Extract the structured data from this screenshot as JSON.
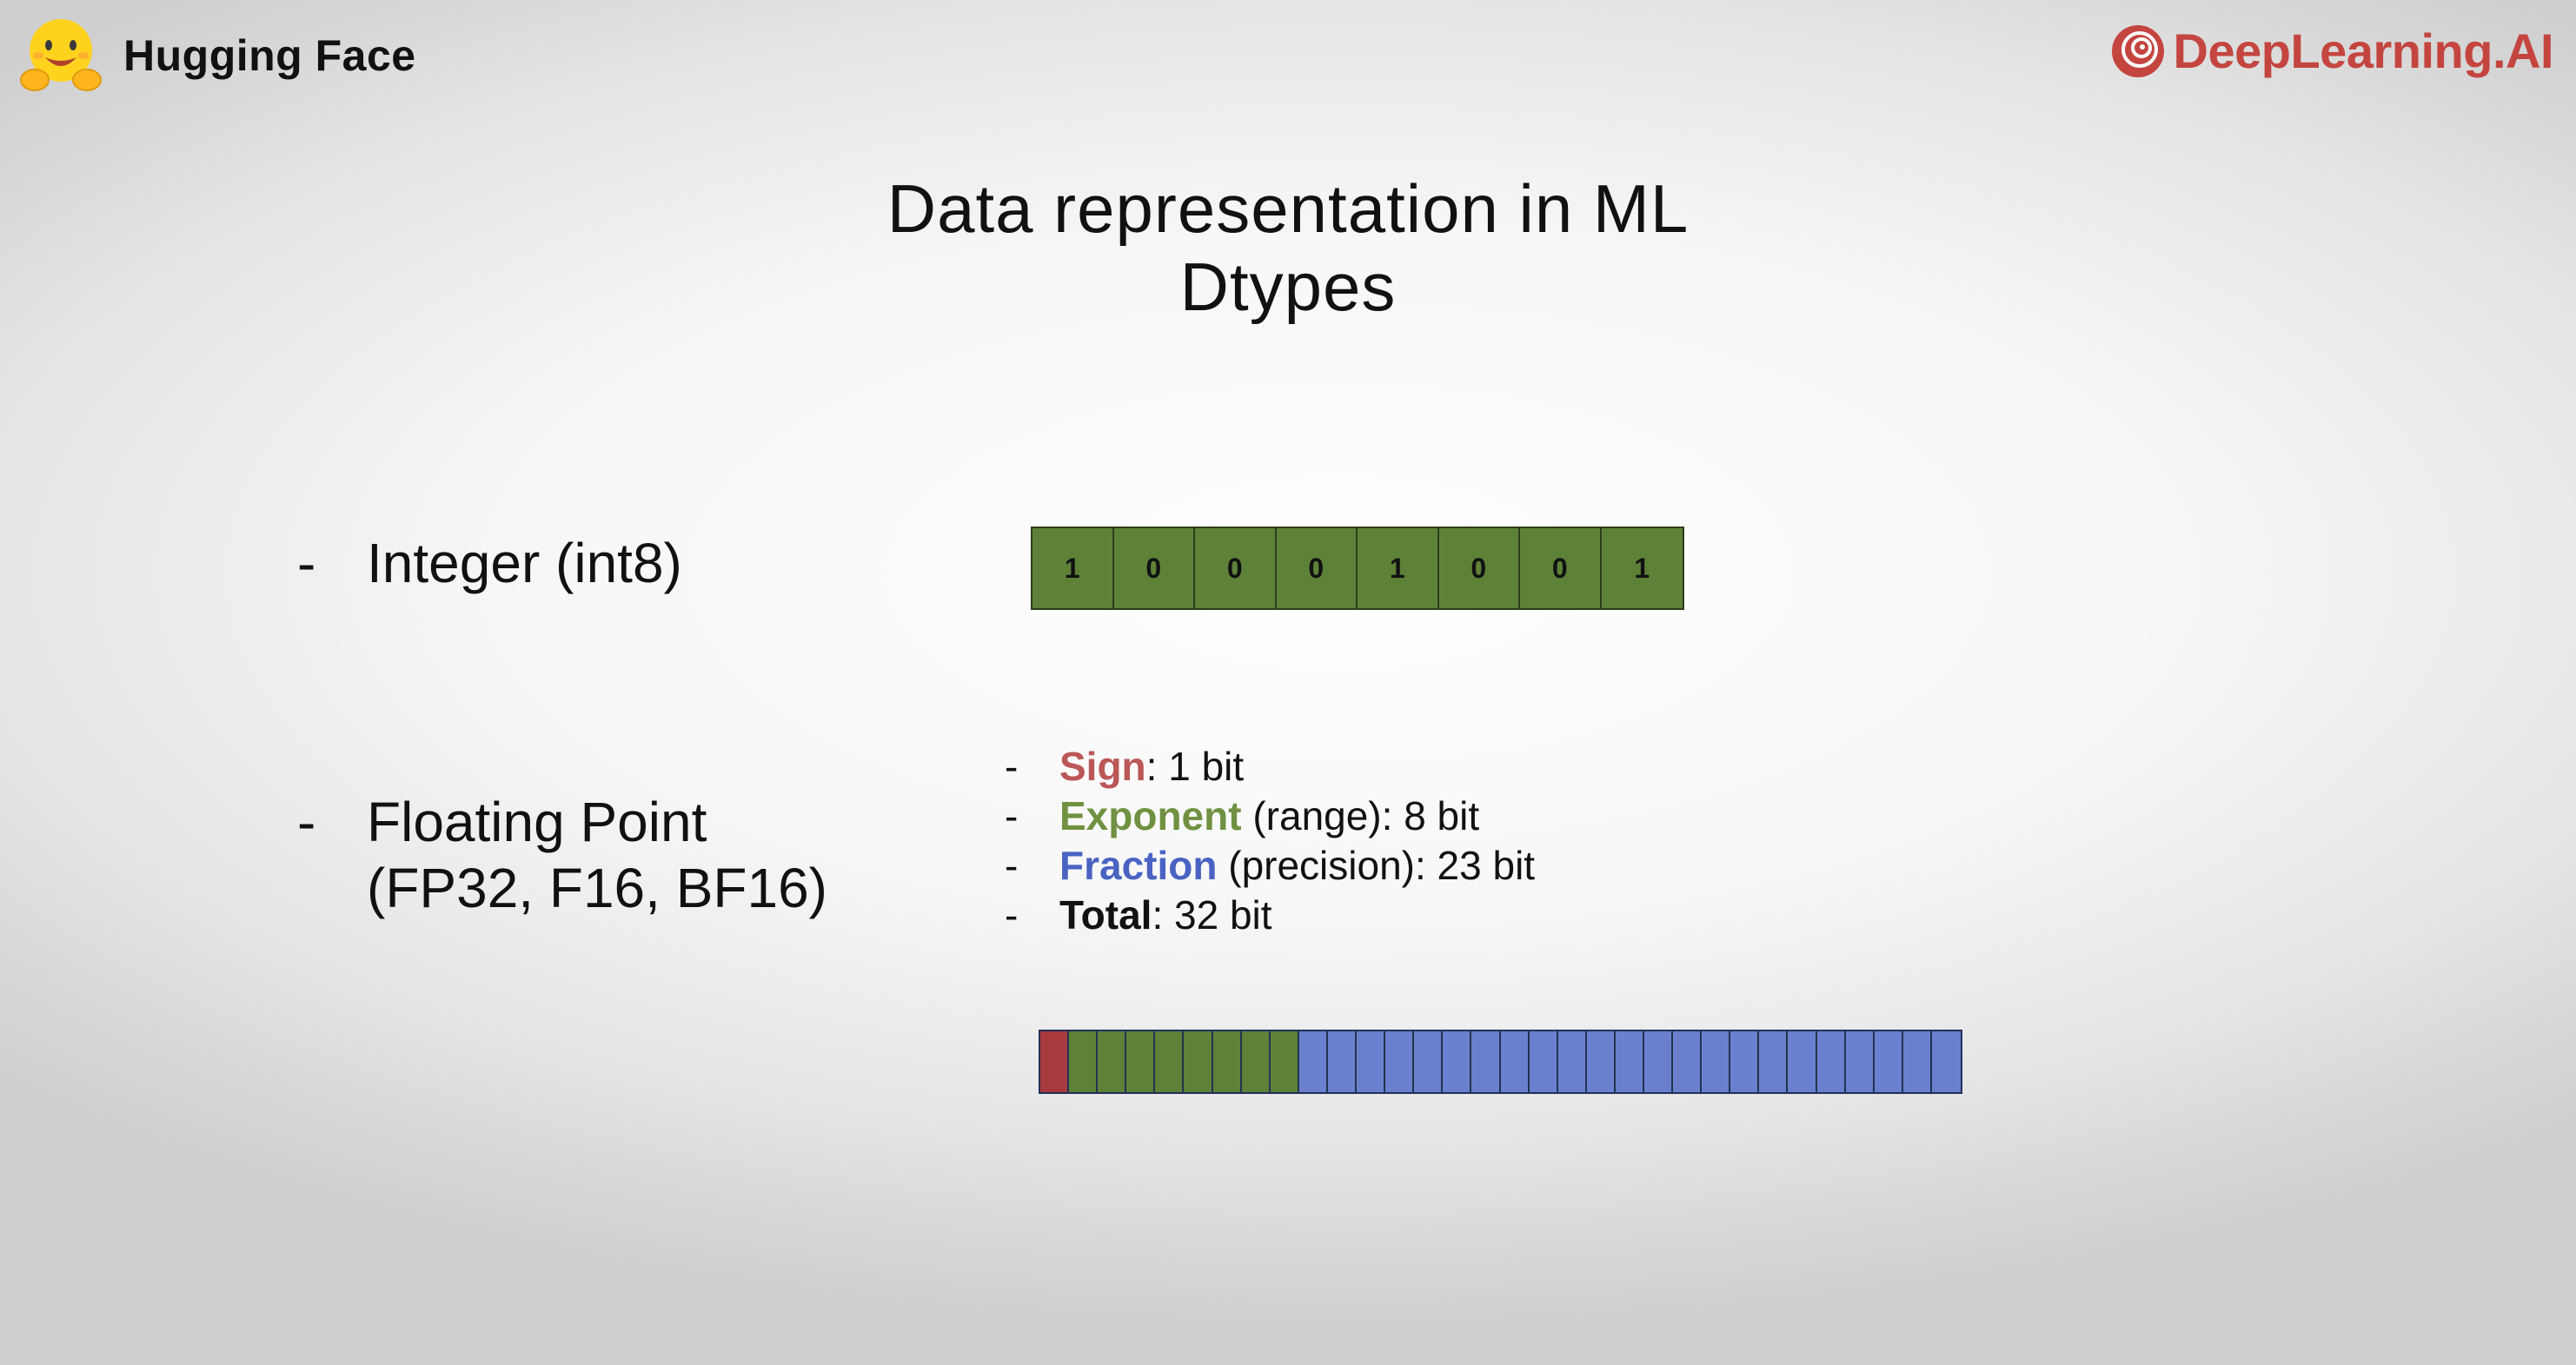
{
  "header": {
    "left_logo_text": "Hugging Face",
    "right_logo_text": "DeepLearning.AI"
  },
  "slide": {
    "title_line1": "Data representation in ML",
    "title_line2": "Dtypes"
  },
  "bullets": {
    "integer": {
      "dash": "-",
      "label": "Integer (int8)"
    },
    "floating": {
      "dash": "-",
      "label_line1": "Floating Point",
      "label_line2": "(FP32, F16, BF16)"
    }
  },
  "int8_bits": [
    "1",
    "0",
    "0",
    "0",
    "1",
    "0",
    "0",
    "1"
  ],
  "fp_details": [
    {
      "dash": "-",
      "key": "Sign",
      "rest": ": 1 bit"
    },
    {
      "dash": "-",
      "key": "Exponent",
      "rest": " (range): 8 bit"
    },
    {
      "dash": "-",
      "key": "Fraction",
      "rest": " (precision): 23 bit"
    },
    {
      "dash": "-",
      "key": "Total",
      "rest": ": 32 bit"
    }
  ],
  "fp32_layout": {
    "sign_bits": 1,
    "exponent_bits": 8,
    "fraction_bits": 23
  },
  "colors": {
    "sign": "#a83a3f",
    "exponent": "#5e8138",
    "fraction": "#6a80ce",
    "dl_brand": "#c4453f"
  },
  "icons": {
    "hugging_face": "hugging-face-emoji-icon",
    "deeplearning": "deeplearning-ai-icon"
  }
}
